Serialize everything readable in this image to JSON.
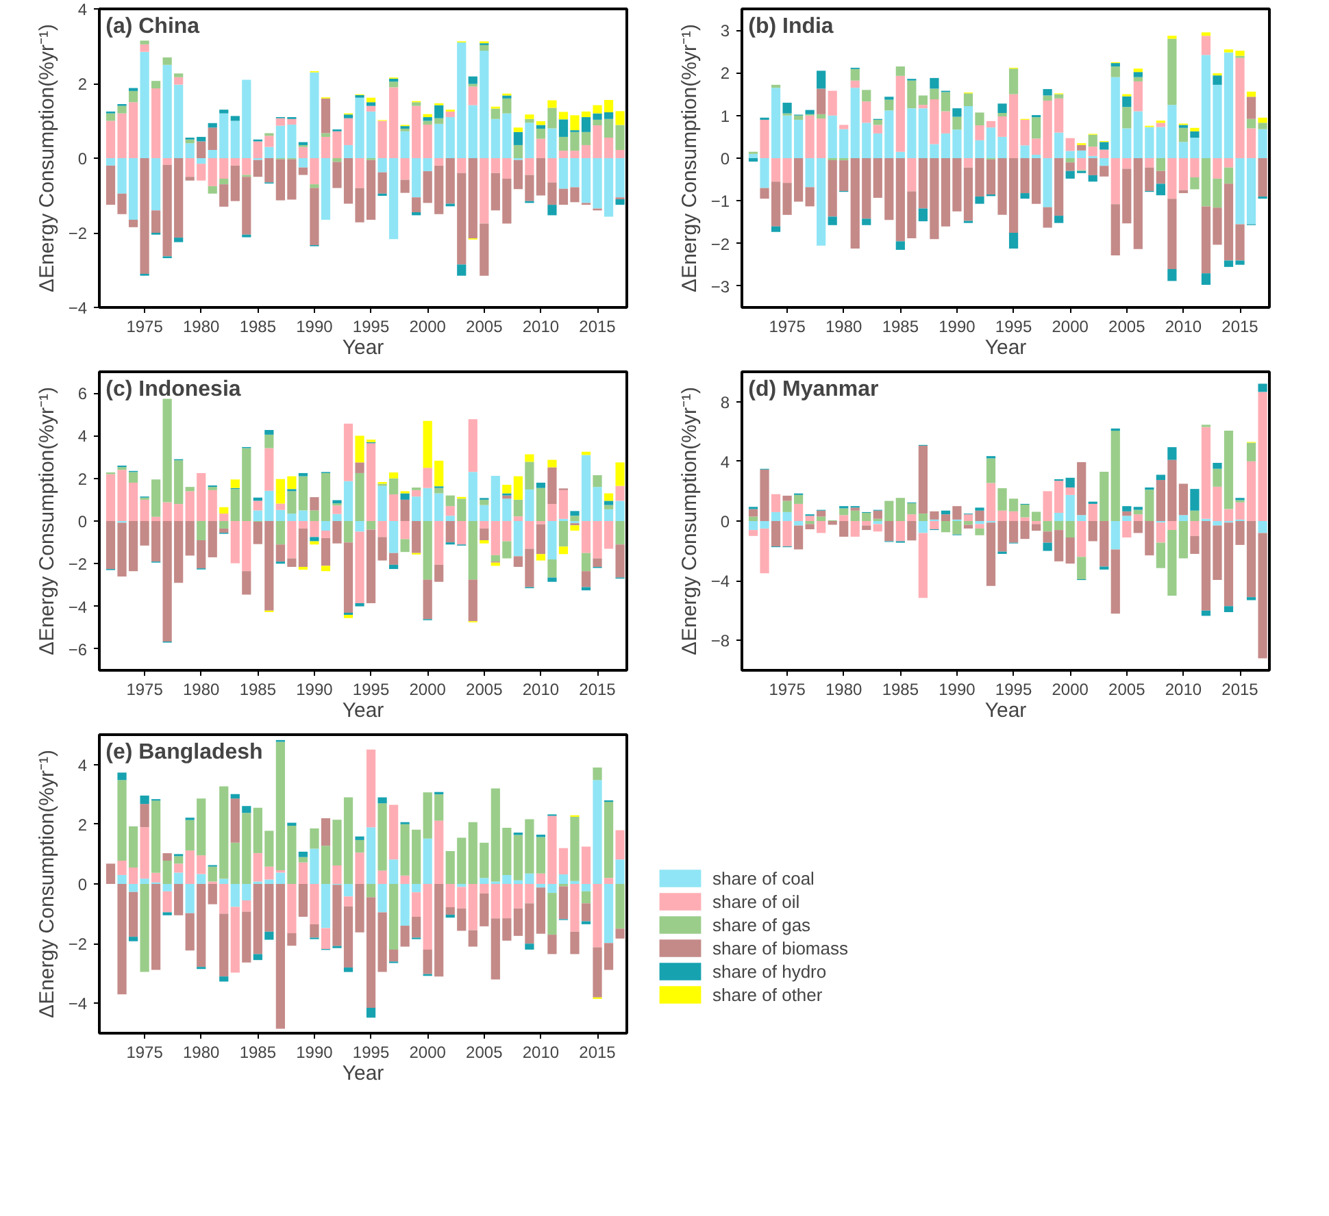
{
  "chart_data": [
    {
      "type": "bar",
      "stacked": true,
      "title": "(a) China",
      "xlabel": "Year",
      "ylabel": "ΔEnergy Consumption(%yr⁻¹)",
      "xlim": [
        1971,
        2017.6
      ],
      "ylim": [
        -4,
        4
      ],
      "xticks": [
        1975,
        1980,
        1985,
        1990,
        1995,
        2000,
        2005,
        2010,
        2015
      ],
      "yticks": [
        -4,
        -2,
        0,
        2,
        4
      ],
      "grid": false,
      "x": [
        1972,
        1973,
        1974,
        1975,
        1976,
        1977,
        1978,
        1979,
        1980,
        1981,
        1982,
        1983,
        1984,
        1985,
        1986,
        1987,
        1988,
        1989,
        1990,
        1991,
        1992,
        1993,
        1994,
        1995,
        1996,
        1997,
        1998,
        1999,
        2000,
        2001,
        2002,
        2003,
        2004,
        2005,
        2006,
        2007,
        2008,
        2009,
        2010,
        2011,
        2012,
        2013,
        2014,
        2015,
        2016,
        2017
      ],
      "series": [
        {
          "color": "#8fe5f5",
          "values": [
            -0.2,
            -0.95,
            -1.65,
            2.85,
            -1.4,
            2.5,
            1.97,
            0.4,
            -0.15,
            0.22,
            1.2,
            1.0,
            2.1,
            -0.05,
            0.3,
            0.87,
            0.9,
            -0.25,
            2.3,
            -1.65,
            0,
            0.35,
            1.62,
            1.25,
            -0.38,
            -2.17,
            0.72,
            -1.05,
            -0.35,
            0.92,
            1.1,
            3.1,
            1.42,
            2.88,
            1.05,
            1.2,
            -0.05,
            0.95,
            0,
            0.8,
            -0.82,
            -0.78,
            -1.2,
            -1.35,
            -1.57,
            -1.05
          ]
        },
        {
          "color": "#ffadb4",
          "values": [
            1.0,
            1.2,
            1.5,
            0.2,
            1.87,
            -0.18,
            0.2,
            -0.5,
            -0.45,
            -0.75,
            -0.55,
            -0.2,
            -0.45,
            0.45,
            0.3,
            0.2,
            0.15,
            0.3,
            -0.7,
            0.57,
            0.72,
            0.72,
            -0.8,
            0.15,
            1.0,
            1.9,
            -0.58,
            1.4,
            0.9,
            -0.2,
            0.15,
            -0.4,
            0.5,
            -1.75,
            -0.4,
            -0.55,
            0,
            -0.45,
            0.52,
            -0.65,
            0.2,
            0.2,
            0.35,
            0.88,
            0.55,
            0.22
          ]
        },
        {
          "color": "#9acd8a",
          "values": [
            0.2,
            0.2,
            0.3,
            0.1,
            0.2,
            0.2,
            0.1,
            0.1,
            0,
            -0.2,
            -0.15,
            0,
            -0.05,
            0,
            0.07,
            -0.03,
            -0.03,
            0.05,
            -0.1,
            0.1,
            -0.1,
            0,
            0,
            -0.05,
            0,
            0.15,
            0.07,
            0.1,
            0.1,
            0.15,
            0,
            0,
            0.07,
            0.15,
            0.28,
            0.4,
            0.35,
            0.1,
            0.27,
            0.55,
            0.37,
            0.5,
            0.35,
            0.15,
            0.5,
            0.67
          ]
        },
        {
          "color": "#c48a88",
          "values": [
            -1.05,
            -0.55,
            -0.2,
            -3.1,
            -0.6,
            -2.45,
            -2.13,
            -0.1,
            0.45,
            0.6,
            -0.6,
            -0.95,
            -1.55,
            -0.45,
            -0.65,
            -1.1,
            -1.08,
            -0.2,
            -1.53,
            0.93,
            -0.7,
            -1.22,
            -0.92,
            -1.6,
            -0.57,
            0,
            -0.35,
            -0.4,
            -0.85,
            -1.3,
            -1.22,
            -2.45,
            -2.15,
            -1.4,
            -1.0,
            -1.2,
            -0.78,
            -0.7,
            -1.0,
            -0.6,
            -0.43,
            -0.4,
            -0.05,
            -0.05,
            0,
            -0.05
          ]
        },
        {
          "color": "#17a2b0",
          "values": [
            0.05,
            0.05,
            0.08,
            -0.05,
            -0.05,
            -0.05,
            -0.12,
            0.05,
            0.12,
            0.12,
            0.1,
            0.13,
            -0.07,
            0.05,
            -0.03,
            0.03,
            0.05,
            0.08,
            -0.03,
            0,
            0.05,
            0.1,
            0.07,
            0.1,
            -0.06,
            0.08,
            0.07,
            -0.08,
            0.1,
            0.35,
            -0.07,
            -0.3,
            0.2,
            0.05,
            0,
            0.08,
            0.35,
            -0.05,
            0.1,
            -0.28,
            0.47,
            0.05,
            0.4,
            0.17,
            0.18,
            -0.15
          ]
        },
        {
          "color": "#ffff00",
          "values": [
            0,
            0,
            0,
            0,
            0,
            0,
            0,
            0,
            0,
            0,
            0,
            0,
            0,
            0,
            0,
            0,
            0,
            0,
            0.03,
            0.03,
            0,
            0.03,
            0.02,
            0.12,
            0.02,
            0.03,
            0.03,
            0.03,
            0.08,
            0.05,
            0.05,
            0.03,
            -0.03,
            0.05,
            0.05,
            0.05,
            0.12,
            0.12,
            0.1,
            0.2,
            0.2,
            0.4,
            0.15,
            0.22,
            0.33,
            0.37
          ]
        }
      ]
    },
    {
      "type": "bar",
      "stacked": true,
      "title": "(b) India",
      "xlabel": "Year",
      "ylabel": "ΔEnergy Consumption(%yr⁻¹)",
      "xlim": [
        1971,
        2017.6
      ],
      "ylim": [
        -3.5,
        3.5
      ],
      "xticks": [
        1975,
        1980,
        1985,
        1990,
        1995,
        2000,
        2005,
        2010,
        2015
      ],
      "yticks": [
        -3,
        -2,
        -1,
        0,
        1,
        2,
        3
      ],
      "grid": false,
      "x": [
        1972,
        1973,
        1974,
        1975,
        1976,
        1977,
        1978,
        1979,
        1980,
        1981,
        1982,
        1983,
        1984,
        1985,
        1986,
        1987,
        1988,
        1989,
        1990,
        1991,
        1992,
        1993,
        1994,
        1995,
        1996,
        1997,
        1998,
        1999,
        2000,
        2001,
        2002,
        2003,
        2004,
        2005,
        2006,
        2007,
        2008,
        2009,
        2010,
        2011,
        2012,
        2013,
        2014,
        2015,
        2016,
        2017
      ],
      "series": [
        {
          "color": "#8fe5f5",
          "values": [
            0.1,
            -0.7,
            1.65,
            1.0,
            0.9,
            -0.68,
            -2.05,
            1.0,
            0.68,
            1.65,
            0.83,
            0.58,
            1.12,
            0.15,
            1.17,
            1.17,
            0.33,
            0.58,
            0.67,
            1.22,
            0.42,
            0.72,
            0.5,
            0,
            0.3,
            0.08,
            -1.15,
            0.6,
            0.17,
            0.18,
            0.05,
            -0.18,
            1.9,
            0.7,
            1.1,
            0.73,
            0.73,
            1.25,
            0.38,
            0.48,
            2.42,
            1.72,
            2.48,
            -1.55,
            -1.55,
            0.68
          ]
        },
        {
          "color": "#ffadb4",
          "values": [
            null,
            0.9,
            -0.55,
            -0.58,
            0,
            1.0,
            0.93,
            0.58,
            0.1,
            0.17,
            0.5,
            0.2,
            0,
            1.78,
            -0.78,
            0.08,
            1.05,
            0.52,
            null,
            -0.22,
            0.35,
            0.15,
            0.48,
            1.5,
            0.6,
            0.38,
            1.35,
            0.8,
            0.3,
            -0.28,
            0.22,
            0.2,
            -1.08,
            -0.25,
            0.7,
            -0.22,
            0.1,
            -0.95,
            -0.75,
            -0.45,
            0.45,
            -0.48,
            -0.22,
            2.35,
            0.7,
            0
          ]
        },
        {
          "color": "#9acd8a",
          "values": [
            0.05,
            0,
            0.07,
            0.05,
            0.1,
            0.03,
            0.1,
            -0.05,
            -0.05,
            0.27,
            0.27,
            0.12,
            0.25,
            0.22,
            0.65,
            0.22,
            0.25,
            0.45,
            0.3,
            0.3,
            0.3,
            -0.03,
            0.08,
            0.6,
            0,
            0.5,
            0.12,
            0.1,
            -0.1,
            -0.02,
            0.28,
            0,
            0.25,
            0.5,
            0.1,
            0,
            -0.3,
            1.55,
            0.33,
            -0.28,
            -1.13,
            -0.68,
            -0.38,
            0.05,
            0.22,
            0.15
          ]
        },
        {
          "color": "#c48a88",
          "values": [
            0,
            -0.25,
            -1.05,
            -0.75,
            -1.02,
            -0.45,
            0.6,
            -1.32,
            -0.72,
            -2.12,
            -1.42,
            -0.93,
            -1.45,
            -1.95,
            -1.1,
            -1.18,
            -1.9,
            -1.6,
            -1.25,
            -1.25,
            -0.9,
            -0.82,
            -1.33,
            -1.75,
            -0.82,
            -1.07,
            -0.48,
            -1.35,
            -0.2,
            0.13,
            -0.4,
            -0.25,
            -1.2,
            -1.28,
            -2.13,
            -0.55,
            -0.3,
            -1.65,
            -0.07,
            0,
            -1.57,
            -0.87,
            -1.8,
            -0.85,
            0.52,
            -0.9
          ]
        },
        {
          "color": "#17a2b0",
          "values": [
            -0.08,
            0.05,
            -0.13,
            0.25,
            0.02,
            0.1,
            0.42,
            -0.2,
            -0.02,
            0.03,
            -0.15,
            0.02,
            0.07,
            -0.2,
            0.04,
            -0.3,
            0.25,
            0.03,
            0.2,
            -0.05,
            -0.17,
            -0.04,
            0.22,
            -0.37,
            -0.13,
            0.05,
            0.15,
            -0.17,
            -0.18,
            -0.05,
            -0.15,
            0.18,
            0.08,
            0.25,
            0.12,
            -0.02,
            -0.27,
            -0.28,
            0.07,
            0.15,
            -0.27,
            0.22,
            -0.15,
            -0.1,
            -0.02,
            -0.05
          ]
        },
        {
          "color": "#ffff00",
          "values": [
            0,
            0,
            0,
            0,
            0,
            0,
            0,
            0,
            0,
            0,
            0,
            0,
            0,
            0,
            0,
            0,
            0,
            0,
            0,
            0.02,
            0,
            0,
            0,
            0.02,
            0.02,
            0,
            0,
            0.02,
            0,
            0.04,
            0.02,
            0.02,
            0.02,
            0.05,
            0.08,
            0.03,
            0.05,
            0.07,
            0.03,
            0.08,
            0.08,
            0.05,
            0.07,
            0.12,
            0.12,
            0.12
          ]
        }
      ]
    },
    {
      "type": "bar",
      "stacked": true,
      "title": "(c) Indonesia",
      "xlabel": "Year",
      "ylabel": "ΔEnergy Consumption(%yr⁻¹)",
      "xlim": [
        1971,
        2017.6
      ],
      "ylim": [
        -7,
        7
      ],
      "xticks": [
        1975,
        1980,
        1985,
        1990,
        1995,
        2000,
        2005,
        2010,
        2015
      ],
      "yticks": [
        -6,
        -4,
        -2,
        0,
        2,
        4,
        6
      ],
      "grid": false,
      "x": [
        1972,
        1973,
        1974,
        1975,
        1976,
        1977,
        1978,
        1979,
        1980,
        1981,
        1982,
        1983,
        1984,
        1985,
        1986,
        1987,
        1988,
        1989,
        1990,
        1991,
        1992,
        1993,
        1994,
        1995,
        1996,
        1997,
        1998,
        1999,
        2000,
        2001,
        2002,
        2003,
        2004,
        2005,
        2006,
        2007,
        2008,
        2009,
        2010,
        2011,
        2012,
        2013,
        2014,
        2015,
        2016,
        2017
      ],
      "series": [
        {
          "color": "#8fe5f5",
          "values": [
            0,
            -0.08,
            0,
            0,
            0,
            0,
            0,
            0,
            0,
            0,
            0,
            0,
            0,
            0.5,
            1.42,
            0.52,
            0.35,
            0.5,
            0,
            -0.45,
            0.33,
            1.87,
            -0.5,
            0,
            1.65,
            -1.5,
            0,
            1.15,
            1.55,
            1.3,
            0.25,
            0,
            2.3,
            0.75,
            2.12,
            1.05,
            -1.65,
            1.48,
            0,
            -1.8,
            0.1,
            -0.1,
            3.1,
            1.6,
            0.55,
            0.95
          ]
        },
        {
          "color": "#ffadb4",
          "values": [
            2.2,
            2.4,
            1.8,
            1.0,
            0.2,
            0.88,
            0.8,
            1.4,
            2.25,
            1.45,
            0.35,
            -1.98,
            -2.35,
            0.45,
            2.0,
            0.3,
            -1.75,
            -0.35,
            -0.75,
            -0.35,
            0.4,
            2.7,
            -3.35,
            3.65,
            -0.75,
            1.25,
            -0.85,
            0.3,
            0.95,
            -2.05,
            0.45,
            -1.1,
            2.48,
            -0.35,
            -1.6,
            -0.95,
            0.22,
            -1.3,
            -0.15,
            0.8,
            1.35,
            0,
            -1.5,
            -1.75,
            -1.3,
            0.7
          ]
        },
        {
          "color": "#9acd8a",
          "values": [
            0.08,
            0.13,
            0.5,
            0.1,
            1.75,
            4.85,
            2.05,
            0.2,
            -0.9,
            0.15,
            -0.35,
            1.5,
            3.42,
            -0.03,
            0.63,
            -1.1,
            1.05,
            1.6,
            0.5,
            2.25,
            0.1,
            -1.0,
            2.25,
            -0.4,
            0.1,
            0.75,
            -0.6,
            0.12,
            -2.75,
            0.25,
            0.5,
            1.05,
            -2.75,
            0.25,
            -0.3,
            -0.8,
            0.78,
            1.3,
            1.55,
            -0.85,
            -1.2,
            0.25,
            -0.85,
            0.55,
            0.2,
            -1.1
          ]
        },
        {
          "color": "#c48a88",
          "values": [
            -2.25,
            -2.52,
            -2.35,
            -1.15,
            -1.9,
            -5.65,
            -2.9,
            -1.62,
            -1.32,
            -1.7,
            -0.2,
            0,
            -1.1,
            -1.05,
            -4.2,
            -0.8,
            -0.4,
            -1.8,
            0.62,
            -1.3,
            -1.05,
            -3.3,
            0.5,
            -3.45,
            -1.1,
            -0.55,
            1.0,
            -1.5,
            -1.85,
            -0.8,
            -1.0,
            0,
            -1.95,
            -0.55,
            -0.05,
            0.15,
            -0.5,
            -1.8,
            -1.4,
            1.72,
            0.08,
            -0.1,
            -0.75,
            -0.4,
            0,
            -1.55
          ]
        },
        {
          "color": "#17a2b0",
          "values": [
            -0.05,
            0.07,
            0.05,
            0.05,
            -0.05,
            -0.05,
            0.05,
            0,
            -0.05,
            0.07,
            -0.05,
            0.05,
            0.05,
            0.15,
            0.22,
            -0.1,
            0.1,
            0.15,
            -0.2,
            0.05,
            0.15,
            -0.1,
            -0.15,
            0.05,
            0,
            -0.2,
            0.3,
            0,
            -0.05,
            0.08,
            -0.1,
            -0.05,
            0,
            0.08,
            0,
            0.1,
            0,
            -0.05,
            0.25,
            -0.2,
            0,
            0.22,
            -0.15,
            -0.05,
            0.2,
            -0.05
          ]
        },
        {
          "color": "#ffff00",
          "values": [
            0,
            0,
            0,
            0,
            0,
            0,
            0,
            0,
            0,
            0,
            0.3,
            0.4,
            0,
            0,
            -0.07,
            1.15,
            0.6,
            -0.13,
            -0.15,
            -0.25,
            0,
            -0.15,
            1.25,
            0.12,
            0.08,
            0.28,
            0.1,
            -0.07,
            2.2,
            1.2,
            0,
            0.08,
            -0.05,
            -0.15,
            -0.15,
            0.4,
            1.1,
            0.35,
            -0.3,
            0.35,
            -0.35,
            -0.25,
            0.15,
            0,
            0.35,
            1.1
          ]
        }
      ]
    },
    {
      "type": "bar",
      "stacked": true,
      "title": "(d) Myanmar",
      "xlabel": "Year",
      "ylabel": "ΔEnergy Consumption(%yr⁻¹)",
      "xlim": [
        1971,
        2017.6
      ],
      "ylim": [
        -10,
        10
      ],
      "xticks": [
        1975,
        1980,
        1985,
        1990,
        1995,
        2000,
        2005,
        2010,
        2015
      ],
      "yticks": [
        -8,
        -4,
        0,
        4,
        8
      ],
      "grid": false,
      "x": [
        1972,
        1973,
        1974,
        1975,
        1976,
        1977,
        1978,
        1979,
        1980,
        1981,
        1982,
        1983,
        1984,
        1985,
        1986,
        1987,
        1988,
        1989,
        1990,
        1991,
        1992,
        1993,
        1994,
        1995,
        1996,
        1997,
        1998,
        1999,
        2000,
        2001,
        2002,
        2003,
        2004,
        2005,
        2006,
        2007,
        2008,
        2009,
        2010,
        2011,
        2012,
        2013,
        2014,
        2015,
        2016,
        2017
      ],
      "series": [
        {
          "color": "#8fe5f5",
          "values": [
            -0.6,
            -0.5,
            0.6,
            0.6,
            -0.3,
            0,
            0,
            0,
            0,
            0,
            0,
            -0.2,
            0,
            0,
            0,
            -0.8,
            0.1,
            0,
            0.1,
            0,
            -0.2,
            -0.1,
            0,
            0,
            0,
            0,
            0,
            0.55,
            1.75,
            0.4,
            0,
            0,
            -1.9,
            0.35,
            0,
            0,
            -0.1,
            0,
            0.4,
            0,
            0.15,
            -0.3,
            -0.1,
            0.1,
            0,
            -0.8
          ]
        },
        {
          "color": "#ffadb4",
          "values": [
            -0.4,
            -3.0,
            1.2,
            -1.7,
            1.15,
            0.35,
            -0.8,
            null,
            0.4,
            -1.05,
            -0.3,
            -0.5,
            0,
            -1.35,
            0.45,
            -4.35,
            -0.55,
            0,
            0,
            0.45,
            -0.3,
            2.55,
            0.7,
            0.65,
            0.25,
            -0.2,
            2.0,
            2.15,
            0.5,
            -2.4,
            1.15,
            0,
            0,
            -1.1,
            0.45,
            0,
            -1.35,
            -0.6,
            0,
            -1.0,
            6.15,
            2.3,
            0.8,
            1.15,
            4.0,
            8.65
          ]
        },
        {
          "color": "#9acd8a",
          "values": [
            0.3,
            0,
            0,
            0.75,
            0.6,
            -0.2,
            0.3,
            0.05,
            0.45,
            0.7,
            0.55,
            0.15,
            1.35,
            1.55,
            0.75,
            0.5,
            0,
            -0.75,
            -0.9,
            -0.25,
            -0.45,
            1.65,
            1.5,
            0.85,
            0.85,
            0.62,
            -0.7,
            -0.6,
            -1.1,
            -1.5,
            0,
            3.3,
            6.05,
            0,
            0.3,
            2.1,
            -1.7,
            -4.4,
            -2.5,
            0.7,
            0.15,
            1.2,
            5.25,
            0.15,
            1.25,
            0
          ]
        },
        {
          "color": "#c48a88",
          "values": [
            0.5,
            3.45,
            -1.7,
            0.35,
            -1.6,
            -0.35,
            0.4,
            -0.25,
            -1.05,
            0.2,
            -0.3,
            0.55,
            -1.35,
            0,
            -1.3,
            4.55,
            0.55,
            0.45,
            0.9,
            -0.25,
            0.7,
            -4.25,
            -2.05,
            -1.45,
            -1.2,
            -0.45,
            -0.75,
            -2.1,
            -1.75,
            3.55,
            -1.35,
            -3.05,
            -4.3,
            0.3,
            -0.8,
            -2.3,
            2.75,
            4.1,
            2.1,
            -1.2,
            -6.0,
            -3.65,
            -5.6,
            -1.6,
            -5.1,
            -8.4
          ]
        },
        {
          "color": "#17a2b0",
          "values": [
            0.15,
            0.05,
            -0.05,
            -0.05,
            0.1,
            0.1,
            0.05,
            0,
            0.15,
            0.1,
            0.05,
            0.05,
            -0.05,
            -0.1,
            0.05,
            0.05,
            -0.05,
            0.25,
            -0.05,
            0.05,
            0.2,
            0.15,
            -0.15,
            -0.05,
            0.05,
            0,
            -0.55,
            0.1,
            0.65,
            -0.05,
            0.15,
            -0.2,
            0.15,
            0.35,
            0.2,
            0.15,
            0.35,
            0.85,
            0,
            1.45,
            -0.35,
            0.4,
            -0.4,
            0.15,
            -0.2,
            0.55
          ]
        },
        {
          "color": "#ffff00",
          "values": [
            0,
            0,
            0,
            0,
            0,
            0,
            0,
            0,
            0,
            0,
            0,
            0,
            0,
            0,
            0,
            0,
            0,
            0,
            0,
            0,
            0,
            0,
            0,
            0,
            0,
            0,
            0,
            0,
            0,
            0,
            0,
            0,
            0,
            0,
            0,
            0,
            0,
            0,
            0,
            0,
            0,
            0,
            0,
            0,
            0.05,
            0
          ]
        }
      ]
    },
    {
      "type": "bar",
      "stacked": true,
      "title": "(e) Bangladesh",
      "xlabel": "Year",
      "ylabel": "ΔEnergy Consumption(%yr⁻¹)",
      "xlim": [
        1971,
        2017.6
      ],
      "ylim": [
        -5,
        5
      ],
      "xticks": [
        1975,
        1980,
        1985,
        1990,
        1995,
        2000,
        2005,
        2010,
        2015
      ],
      "yticks": [
        -4,
        -2,
        0,
        2,
        4
      ],
      "grid": false,
      "legend": "right",
      "x": [
        1972,
        1973,
        1974,
        1975,
        1976,
        1977,
        1978,
        1979,
        1980,
        1981,
        1982,
        1983,
        1984,
        1985,
        1986,
        1987,
        1988,
        1989,
        1990,
        1991,
        1992,
        1993,
        1994,
        1995,
        1996,
        1997,
        1998,
        1999,
        2000,
        2001,
        2002,
        2003,
        2004,
        2005,
        2006,
        2007,
        2008,
        2009,
        2010,
        2011,
        2012,
        2013,
        2014,
        2015,
        2016,
        2017
      ],
      "series": [
        {
          "name": "share of coal",
          "color": "#8fe5f5",
          "values": [
            0,
            0.3,
            -0.27,
            0.18,
            0.05,
            -0.25,
            0.38,
            -0.98,
            0.33,
            0,
            0.17,
            -0.77,
            -0.55,
            0.08,
            0.15,
            0.38,
            0,
            0,
            1.18,
            -1.48,
            -0.03,
            -0.42,
            0,
            1.9,
            -0.95,
            0.82,
            -1.4,
            -0.28,
            1.52,
            0,
            0,
            -0.1,
            0,
            0.2,
            0.08,
            0.3,
            0.12,
            0.35,
            -0.12,
            -0.3,
            0.32,
            0.1,
            -0.25,
            3.48,
            -1.98,
            0.82
          ]
        },
        {
          "name": "share of oil",
          "color": "#ffadb4",
          "values": [
            0,
            0.48,
            0.55,
            1.72,
            0.32,
            -0.7,
            0.3,
            1.12,
            0.63,
            0.08,
            -1.0,
            -2.2,
            -0.38,
            0.95,
            0.43,
            0.08,
            -1.65,
            0.72,
            -1.35,
            -0.7,
            0.62,
            -0.33,
            1.05,
            2.6,
            0.45,
            1.83,
            0.28,
            -0.82,
            -2.2,
            2.12,
            -0.78,
            -0.72,
            -1.55,
            -0.32,
            -1.15,
            -1.15,
            -0.82,
            -0.65,
            0.35,
            2.28,
            0.88,
            -1.6,
            1.25,
            -2.12,
            0.2,
            0.98
          ]
        },
        {
          "name": "share of gas",
          "color": "#9acd8a",
          "values": [
            0,
            2.7,
            1.38,
            -2.95,
            2.42,
            0.78,
            0.25,
            1.02,
            1.9,
            0.5,
            3.1,
            1.38,
            2.38,
            1.52,
            1.2,
            4.3,
            1.95,
            0.18,
            0.68,
            1.28,
            1.53,
            2.9,
            0.42,
            -0.45,
            2.25,
            -2.2,
            1.72,
            1.82,
            1.55,
            0.88,
            1.1,
            1.55,
            2.07,
            1.18,
            3.12,
            1.58,
            1.52,
            1.82,
            1.22,
            -1.4,
            -0.08,
            2.15,
            -0.4,
            0.42,
            2.55,
            -1.5
          ]
        },
        {
          "name": "share of biomass",
          "color": "#c48a88",
          "values": [
            0.68,
            -3.7,
            -1.5,
            0.78,
            -2.88,
            0.25,
            -1.05,
            -1.25,
            -2.78,
            -0.68,
            -2.1,
            1.48,
            -1.7,
            -2.35,
            -1.6,
            -4.85,
            -0.42,
            -1.1,
            -0.45,
            0.92,
            -2.05,
            -2.05,
            -1.62,
            -3.7,
            -2.0,
            -0.4,
            -0.7,
            -0.7,
            -0.82,
            -3.1,
            -0.25,
            -0.75,
            -0.55,
            -1.1,
            -2.05,
            -0.75,
            -0.92,
            -1.35,
            -1.55,
            -0.65,
            -1.1,
            -0.75,
            -0.6,
            -1.68,
            -0.9,
            -0.33
          ]
        },
        {
          "name": "share of hydro",
          "color": "#17a2b0",
          "values": [
            0,
            0.25,
            -0.15,
            0.28,
            0.05,
            -0.1,
            0.07,
            0.08,
            -0.07,
            0.05,
            -0.17,
            0.15,
            0.23,
            -0.2,
            -0.27,
            0.06,
            0.1,
            0.18,
            -0.05,
            -0.03,
            -0.07,
            -0.15,
            0.12,
            -0.33,
            0.2,
            -0.05,
            0.07,
            -0.05,
            -0.06,
            0.08,
            -0.1,
            0,
            0,
            0,
            0,
            0,
            0.08,
            -0.2,
            0.08,
            0.05,
            -0.03,
            0,
            -0.1,
            0,
            0.05,
            0
          ]
        },
        {
          "name": "share of other",
          "color": "#ffff00",
          "values": [
            0,
            0,
            0,
            0,
            0,
            0,
            0,
            0,
            0,
            0,
            0,
            0,
            0,
            0,
            0,
            0,
            0,
            0,
            0,
            0,
            0,
            0,
            0,
            0,
            0,
            0,
            0,
            0,
            0,
            0,
            0,
            0,
            0,
            0,
            0,
            0,
            0,
            0,
            0,
            0,
            0,
            0.05,
            0,
            -0.05,
            0,
            0
          ]
        }
      ]
    }
  ]
}
